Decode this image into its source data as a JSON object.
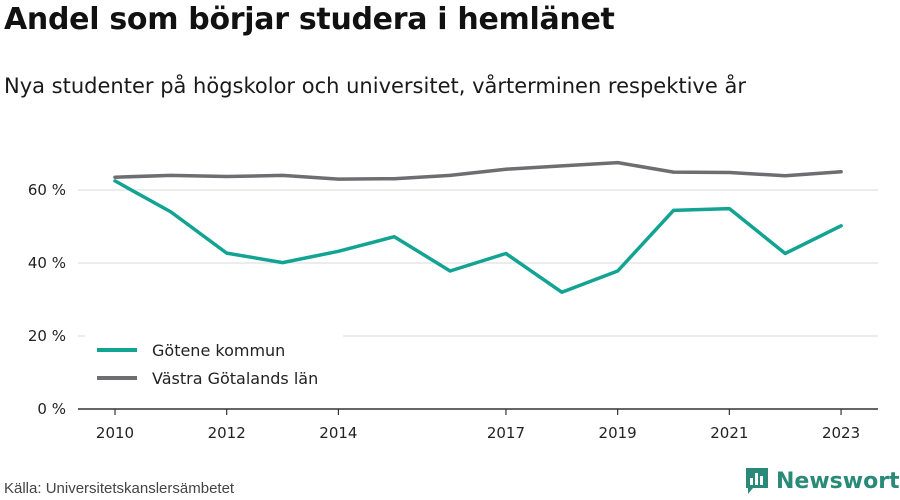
{
  "title": "Andel som börjar studera i hemlänet",
  "subtitle": "Nya studenter på högskolor och universitet, vårterminen respektive år",
  "source": "Källa: Universitetskanslersämbetet",
  "brand": {
    "name": "Newsworthy",
    "icon": "bar-chart-logo-icon"
  },
  "colors": {
    "series_1": "#12a392",
    "series_2": "#6e6d72",
    "grid": "#d9d9d9",
    "axis": "#333333"
  },
  "chart_data": {
    "type": "line",
    "x": [
      2010,
      2011,
      2012,
      2013,
      2014,
      2015,
      2016,
      2017,
      2018,
      2019,
      2020,
      2021,
      2022,
      2023
    ],
    "x_ticks": [
      "2010",
      "2012",
      "2014",
      "2017",
      "2019",
      "2021",
      "2023"
    ],
    "y_ticks": [
      "0 %",
      "20 %",
      "40 %",
      "60 %"
    ],
    "ylim": [
      0,
      70
    ],
    "grid": true,
    "legend_position": "bottom-left",
    "series": [
      {
        "name": "Götene kommun",
        "color": "#12a392",
        "values": [
          62.5,
          54,
          42.7,
          40.1,
          43.2,
          47.2,
          37.8,
          42.6,
          32,
          37.8,
          54.4,
          54.9,
          42.6,
          50.2
        ]
      },
      {
        "name": "Västra Götalands län",
        "color": "#6e6d72",
        "values": [
          63.5,
          64,
          63.7,
          64,
          63,
          63.1,
          64,
          65.7,
          66.6,
          67.5,
          64.9,
          64.8,
          63.9,
          65
        ]
      }
    ]
  }
}
